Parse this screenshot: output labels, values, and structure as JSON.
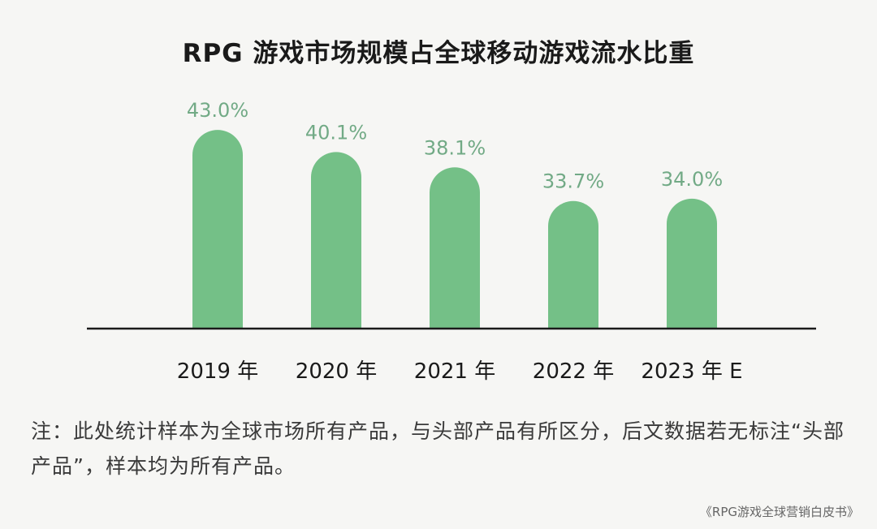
{
  "chart_data": {
    "type": "bar",
    "title": "RPG 游戏市场规模占全球移动游戏流水比重",
    "categories": [
      "2019 年",
      "2020 年",
      "2021 年",
      "2022 年",
      "2023 年 E"
    ],
    "values": [
      43.0,
      40.1,
      38.1,
      33.7,
      34.0
    ],
    "data_labels": [
      "43.0%",
      "40.1%",
      "38.1%",
      "33.7%",
      "34.0%"
    ],
    "xlabel": "",
    "ylabel": "",
    "ylim": [
      17,
      60
    ],
    "grid": false,
    "colors": {
      "bar": "#74c087",
      "label": "#72aa86",
      "axis": "#1a1a1a"
    }
  },
  "note": "注：此处统计样本为全球市场所有产品，与头部产品有所区分，后文数据若无标注“头部产品”，样本均为所有产品。",
  "source": "《RPG游戏全球营销白皮书》"
}
